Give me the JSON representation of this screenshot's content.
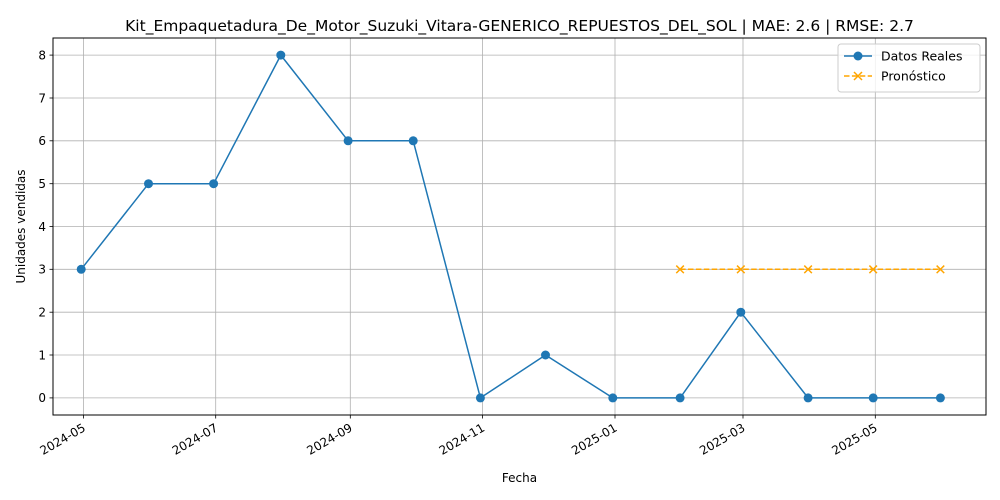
{
  "chart_data": {
    "type": "line",
    "title": "Kit_Empaquetadura_De_Motor_Suzuki_Vitara-GENERICO_REPUESTOS_DEL_SOL | MAE: 2.6 | RMSE: 2.7",
    "xlabel": "Fecha",
    "ylabel": "Unidades vendidas",
    "ylim": [
      -0.4,
      8.4
    ],
    "xlim": [
      "2024-04-17",
      "2025-06-21"
    ],
    "grid": true,
    "legend_position": "top-right",
    "x_ticks": [
      "2024-05",
      "2024-07",
      "2024-09",
      "2024-11",
      "2025-01",
      "2025-03",
      "2025-05"
    ],
    "y_ticks": [
      0,
      1,
      2,
      3,
      4,
      5,
      6,
      7,
      8
    ],
    "series": [
      {
        "name": "Datos Reales",
        "color": "#1f77b4",
        "marker": "circle",
        "linestyle": "solid",
        "x": [
          "2024-04-30",
          "2024-05-31",
          "2024-06-30",
          "2024-07-31",
          "2024-08-31",
          "2024-09-30",
          "2024-10-31",
          "2024-11-30",
          "2024-12-31",
          "2025-01-31",
          "2025-02-28",
          "2025-03-31",
          "2025-04-30",
          "2025-05-31"
        ],
        "values": [
          3,
          5,
          5,
          8,
          6,
          6,
          0,
          1,
          0,
          0,
          2,
          0,
          0,
          0
        ]
      },
      {
        "name": "Pronóstico",
        "color": "#ffa500",
        "marker": "x",
        "linestyle": "dashed",
        "x": [
          "2025-01-31",
          "2025-02-28",
          "2025-03-31",
          "2025-04-30",
          "2025-05-31"
        ],
        "values": [
          3,
          3,
          3,
          3,
          3
        ]
      }
    ]
  }
}
